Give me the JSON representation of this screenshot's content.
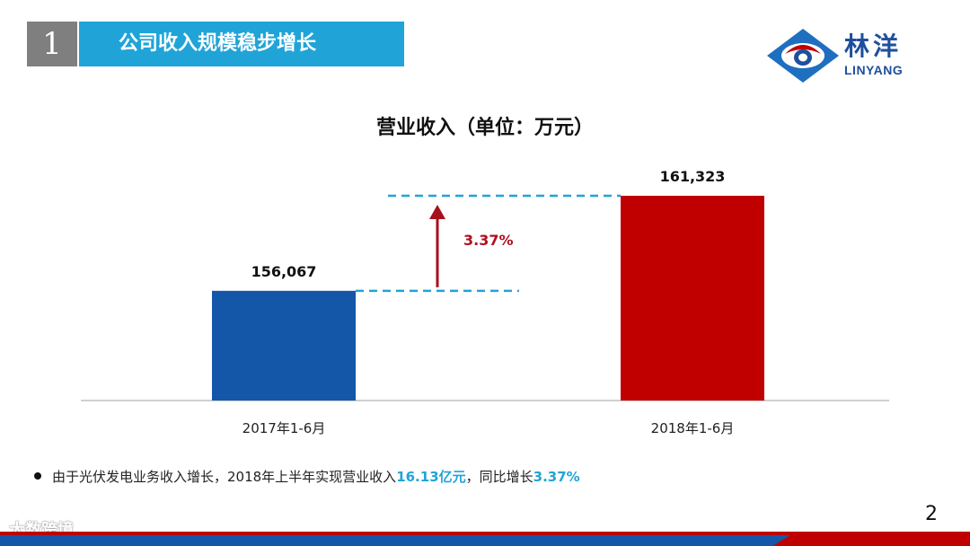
{
  "header": {
    "number": "1",
    "title": "公司收入规模稳步增长"
  },
  "logo": {
    "name_cn": "林洋",
    "name_en": "LINYANG"
  },
  "chart_data": {
    "type": "bar",
    "title": "营业收入（单位：万元）",
    "categories": [
      "2017年1-6月",
      "2018年1-6月"
    ],
    "values": [
      156067,
      161323
    ],
    "value_labels": [
      "156,067",
      "161,323"
    ],
    "bar_colors": [
      "#1457a8",
      "#c00000"
    ],
    "annotation": {
      "text": "3.37%",
      "color": "#b01020"
    },
    "ylim": [
      150000,
      162000
    ],
    "grid": false,
    "legend": "none"
  },
  "bullet": {
    "prefix": "由于光伏发电业务收入增长，2018年上半年实现营业收入",
    "highlight1": "16.13亿元",
    "middle": "，同比增长",
    "highlight2": "3.37%"
  },
  "page_number": "2",
  "watermark": "大数跨境",
  "colors": {
    "accent": "#20a4d8",
    "header_gray": "#7f7f7f",
    "footer_red": "#c00000",
    "footer_blue": "#1457a8"
  }
}
